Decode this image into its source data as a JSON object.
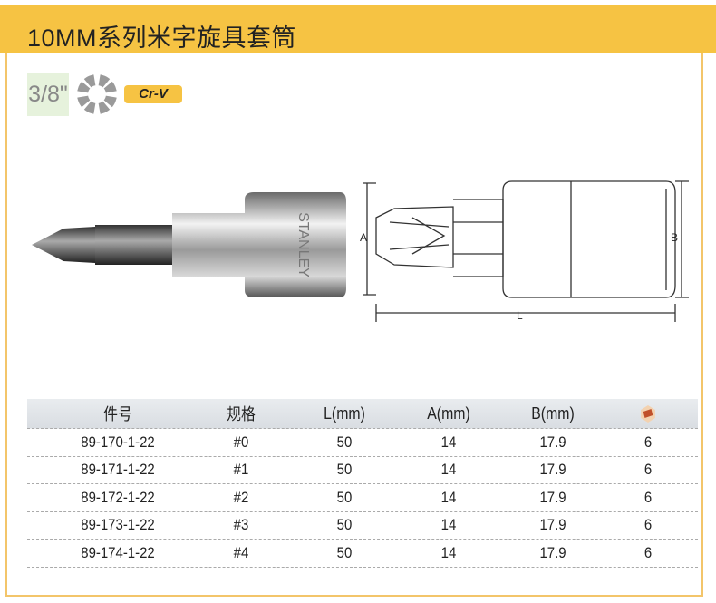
{
  "header": {
    "title": "10MM系列米字旋具套筒"
  },
  "specs": {
    "drive_size": "3/8\"",
    "drive_icon": "12-point-socket-icon",
    "material_badge": "Cr-V"
  },
  "photo": {
    "brand_engraving": "STANLEY"
  },
  "diagram": {
    "label_a": "A",
    "label_b": "B",
    "label_l": "L"
  },
  "table": {
    "columns": [
      "件号",
      "规格",
      "L(mm)",
      "A(mm)",
      "B(mm)"
    ],
    "pack_icon": "box-quantity-icon",
    "rows": [
      [
        "89-170-1-22",
        "#0",
        "50",
        "14",
        "17.9",
        "6"
      ],
      [
        "89-171-1-22",
        "#1",
        "50",
        "14",
        "17.9",
        "6"
      ],
      [
        "89-172-1-22",
        "#2",
        "50",
        "14",
        "17.9",
        "6"
      ],
      [
        "89-173-1-22",
        "#3",
        "50",
        "14",
        "17.9",
        "6"
      ],
      [
        "89-174-1-22",
        "#4",
        "50",
        "14",
        "17.9",
        "6"
      ]
    ]
  },
  "colors": {
    "accent": "#f6c343",
    "header_band": "#dde1e5"
  }
}
